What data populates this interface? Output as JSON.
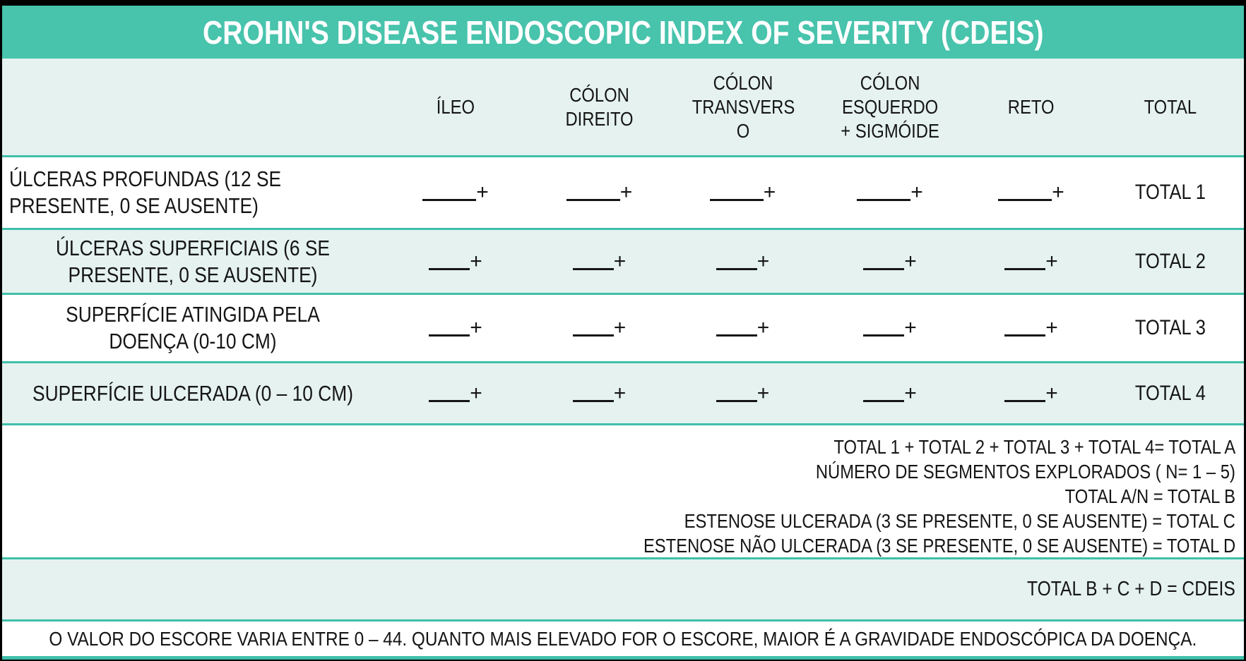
{
  "title": "CROHN'S DISEASE ENDOSCOPIC INDEX OF SEVERITY (CDEIS)",
  "plus": "+",
  "columns": [
    "ÍLEO",
    "CÓLON\nDIREITO",
    "CÓLON\nTRANSVERS\nO",
    "CÓLON\nESQUERDO\n+ SIGMÓIDE",
    "RETO",
    "TOTAL"
  ],
  "rows": [
    {
      "label": "ÚLCERAS PROFUNDAS  (12 SE PRESENTE, 0 SE AUSENTE)",
      "total": "TOTAL 1"
    },
    {
      "label": "ÚLCERAS SUPERFICIAIS (6 SE PRESENTE, 0 SE AUSENTE)",
      "total": "TOTAL 2"
    },
    {
      "label": "SUPERFÍCIE ATINGIDA PELA DOENÇA (0-10 CM)",
      "total": "TOTAL 3"
    },
    {
      "label": "SUPERFÍCIE ULCERADA (0 – 10 CM)",
      "total": "TOTAL 4"
    }
  ],
  "formulas": [
    "TOTAL 1 + TOTAL 2 + TOTAL 3 + TOTAL 4= TOTAL A",
    "NÚMERO DE SEGMENTOS EXPLORADOS ( N= 1 – 5)",
    "TOTAL A/N = TOTAL B",
    "ESTENOSE ULCERADA (3 SE PRESENTE, 0 SE AUSENTE) = TOTAL C",
    "ESTENOSE NÃO ULCERADA (3 SE PRESENTE, 0 SE AUSENTE) = TOTAL D"
  ],
  "cdeis_formula": "TOTAL B + C + D = CDEIS",
  "note": "O VALOR DO ESCORE VARIA ENTRE 0 – 44. QUANTO MAIS ELEVADO FOR O ESCORE, MAIOR É A GRAVIDADE ENDOSCÓPICA DA DOENÇA.",
  "colors": {
    "teal": "#48C3AC",
    "mint": "#E5F2EF",
    "row_border": "#3FBFA9",
    "text": "#151515"
  }
}
